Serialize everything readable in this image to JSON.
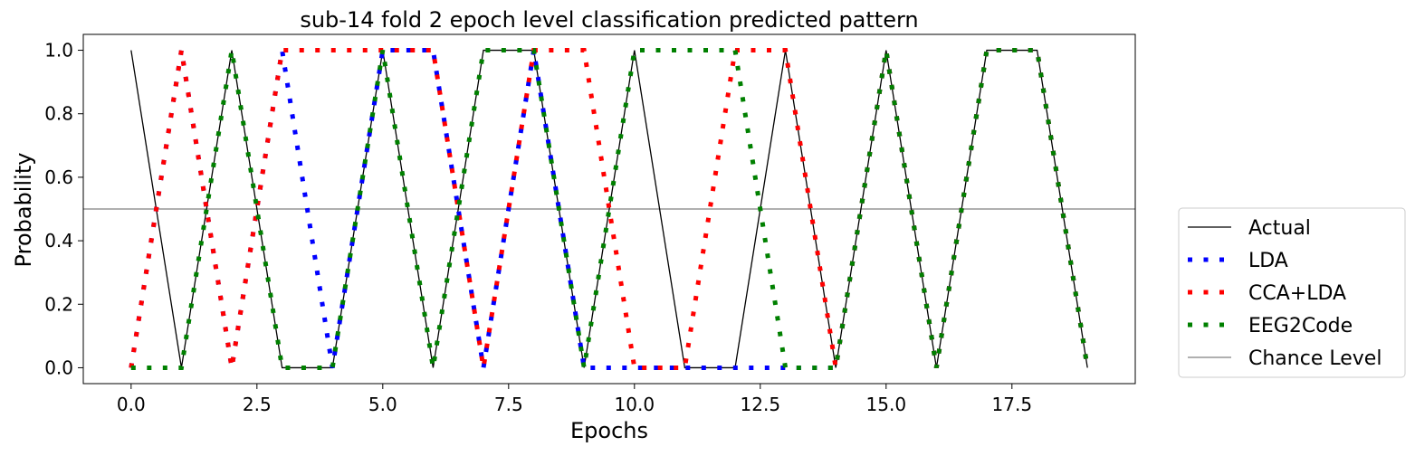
{
  "chart_data": {
    "type": "line",
    "title": "sub-14 fold 2 epoch level classification predicted pattern",
    "xlabel": "Epochs",
    "ylabel": "Probability",
    "xlim": [
      -0.95,
      19.95
    ],
    "ylim": [
      -0.05,
      1.05
    ],
    "xticks": [
      0,
      2.5,
      5,
      7.5,
      10,
      12.5,
      15,
      17.5
    ],
    "xtick_labels": [
      "0.0",
      "2.5",
      "5.0",
      "7.5",
      "10.0",
      "12.5",
      "15.0",
      "17.5"
    ],
    "yticks": [
      0,
      0.2,
      0.4,
      0.6,
      0.8,
      1.0
    ],
    "ytick_labels": [
      "0.0",
      "0.2",
      "0.4",
      "0.6",
      "0.8",
      "1.0"
    ],
    "grid": false,
    "legend_position": "outside-right-bottom",
    "x": [
      0,
      1,
      2,
      3,
      4,
      5,
      6,
      7,
      8,
      9,
      10,
      11,
      12,
      13,
      14,
      15,
      16,
      17,
      18,
      19
    ],
    "series": [
      {
        "name": "Actual",
        "color": "#000000",
        "style": "solid",
        "values": [
          1,
          0,
          1,
          0,
          0,
          1,
          0,
          1,
          1,
          0,
          1,
          0,
          0,
          1,
          0,
          1,
          0,
          1,
          1,
          0
        ]
      },
      {
        "name": "LDA",
        "color": "#0000ff",
        "style": "dotted",
        "values": [
          0,
          1,
          0,
          1,
          0,
          1,
          1,
          0,
          1,
          0,
          0,
          0,
          0,
          0,
          0,
          1,
          0,
          1,
          1,
          0
        ]
      },
      {
        "name": "CCA+LDA",
        "color": "#ff0000",
        "style": "dotted",
        "values": [
          0,
          1,
          0,
          1,
          1,
          1,
          1,
          0,
          1,
          1,
          0,
          0,
          1,
          1,
          0,
          1,
          0,
          1,
          1,
          0
        ]
      },
      {
        "name": "EEG2Code",
        "color": "#008000",
        "style": "dotted",
        "values": [
          0,
          0,
          1,
          0,
          0,
          1,
          0,
          1,
          1,
          0,
          1,
          1,
          1,
          0,
          0,
          1,
          0,
          1,
          1,
          0
        ]
      }
    ],
    "hlines": [
      {
        "name": "Chance Level",
        "y": 0.5,
        "color": "#808080"
      }
    ]
  }
}
